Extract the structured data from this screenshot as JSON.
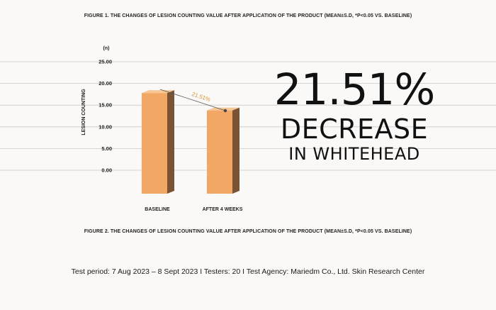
{
  "figure_captions": {
    "top": "FIGURE 1. THE CHANGES OF LESION COUNTING VALUE AFTER APPLICATION OF THE PRODUCT (MEAN±S.D, *P<0.05 VS. BASELINE)",
    "bottom": "FIGURE 2. THE CHANGES OF LESION COUNTING VALUE AFTER APPLICATION OF THE PRODUCT (MEAN±S.D, *P<0.05 VS. BASELINE)"
  },
  "headline": {
    "percent": "21.51%",
    "line2": "DECREASE",
    "line3": "IN WHITEHEAD"
  },
  "footer": "Test period: 7 Aug 2023 – 8 Sept 2023 I Testers: 20 I Test Agency: Mariedm Co., Ltd. Skin Research Center",
  "chart_data": {
    "type": "bar",
    "categories": [
      "BASELINE",
      "AFTER 4 WEEKS"
    ],
    "values": [
      18.6,
      14.6
    ],
    "ylabel": "LESION COUNTING",
    "unit_label": "(n)",
    "y_ticks": [
      "25.00",
      "20.00",
      "15.00",
      "10.00",
      "5.00",
      "0.00"
    ],
    "ylim": [
      0,
      25
    ],
    "annotation": "21.51%",
    "grid": true,
    "colors": {
      "bar_front": "#f2a765",
      "bar_side": "#7a5234",
      "bar_top": "#f7c793",
      "annotation": "#e2923d",
      "grid": "#c9c9c9"
    }
  }
}
